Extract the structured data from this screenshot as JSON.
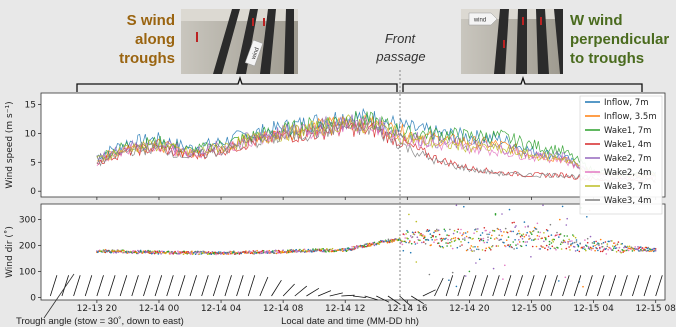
{
  "header": {
    "left_caption": [
      "S wind",
      "along",
      "troughs"
    ],
    "right_caption": [
      "W wind",
      "perpendicular",
      "to troughs"
    ],
    "front_label": [
      "Front",
      "passage"
    ],
    "photo_left_sign": "wind",
    "photo_right_sign": "wind"
  },
  "footer": {
    "trough_note": "Trough angle (stow = 30˚, down to east)",
    "xaxis_label": "Local date and time (MM-DD hh)"
  },
  "colors": {
    "Inflow, 7m": "#1f77b4",
    "Inflow, 3.5m": "#ff7f0e",
    "Wake1, 7m": "#2ca02c",
    "Wake1, 4m": "#d62728",
    "Wake2, 7m": "#9467bd",
    "Wake2, 4m": "#e377c2",
    "Wake3, 7m": "#bcbd22",
    "Wake3, 4m": "#7f7f7f",
    "header_green": "#4a6b1e",
    "header_brown": "#9a6410"
  },
  "chart_data": [
    {
      "type": "line",
      "ylabel": "Wind speed (m s⁻¹)",
      "ylim": [
        -1,
        17
      ],
      "yticks": [
        0,
        5,
        10,
        15
      ],
      "xlim": [
        -4,
        85
      ],
      "x_ticklabels": [
        "12-13 20",
        "12-14 00",
        "12-14 04",
        "12-14 08",
        "12-14 12",
        "12-14 16",
        "12-14 20",
        "12-15 00",
        "12-15 04",
        "12-15 08"
      ],
      "x_tick_positions_hours": [
        0,
        4,
        8,
        12,
        16,
        20,
        24,
        28,
        32,
        36
      ],
      "legend_position": "right",
      "front_passage_hour": 20,
      "x_units": "hours after 12-13 20:00",
      "series": [
        {
          "name": "Inflow, 7m",
          "x": [
            0,
            2,
            4,
            6,
            8,
            10,
            12,
            14,
            16,
            18,
            20,
            22,
            24,
            26,
            28,
            30,
            32,
            34,
            36
          ],
          "values": [
            6,
            8.5,
            9,
            7.5,
            8.5,
            10,
            11,
            12,
            13,
            12.5,
            11,
            10,
            9.5,
            9,
            7,
            6,
            3,
            3,
            3
          ]
        },
        {
          "name": "Inflow, 3.5m",
          "x": [
            0,
            2,
            4,
            6,
            8,
            10,
            12,
            14,
            16,
            18,
            20,
            22,
            24,
            26,
            28,
            30,
            32,
            34,
            36
          ],
          "values": [
            5.5,
            7.5,
            8,
            6.5,
            7.5,
            9,
            10,
            11,
            12,
            11.5,
            10,
            9,
            8.5,
            8,
            6.5,
            5.5,
            3,
            2.8,
            2.8
          ]
        },
        {
          "name": "Wake1, 7m",
          "x": [
            0,
            2,
            4,
            6,
            8,
            10,
            12,
            14,
            16,
            18,
            20,
            22,
            24,
            26,
            28,
            30,
            32,
            34,
            36
          ],
          "values": [
            5.8,
            8,
            8.5,
            7,
            8,
            9.5,
            10.5,
            11.5,
            12.5,
            12,
            10,
            10,
            9.5,
            9.5,
            8,
            7,
            3.5,
            3,
            3
          ]
        },
        {
          "name": "Wake1, 4m",
          "x": [
            0,
            2,
            4,
            6,
            8,
            10,
            12,
            14,
            16,
            18,
            20,
            22,
            24,
            26,
            28,
            30,
            32,
            34,
            36
          ],
          "values": [
            5,
            7,
            7.5,
            6,
            7,
            8.5,
            9.5,
            10,
            11,
            10.5,
            8,
            5.5,
            4,
            3.2,
            2.8,
            2.8,
            2,
            2,
            2
          ]
        },
        {
          "name": "Wake2, 7m",
          "x": [
            0,
            2,
            4,
            6,
            8,
            10,
            12,
            14,
            16,
            18,
            20,
            22,
            24,
            26,
            28,
            30,
            32,
            34,
            36
          ],
          "values": [
            5.5,
            7.8,
            8.2,
            6.8,
            7.8,
            9.2,
            10.2,
            11,
            12,
            11.5,
            9.5,
            8.5,
            8,
            7.5,
            6.5,
            6,
            3.2,
            2.8,
            2.8
          ]
        },
        {
          "name": "Wake2, 4m",
          "x": [
            0,
            2,
            4,
            6,
            8,
            10,
            12,
            14,
            16,
            18,
            20,
            22,
            24,
            26,
            28,
            30,
            32,
            34,
            36
          ],
          "values": [
            5,
            7.2,
            7.8,
            6.2,
            7.2,
            8.8,
            9.8,
            10.5,
            11.5,
            11,
            9,
            8,
            7.5,
            7,
            6,
            5.5,
            3,
            2.5,
            2.5
          ]
        },
        {
          "name": "Wake3, 7m",
          "x": [
            0,
            2,
            4,
            6,
            8,
            10,
            12,
            14,
            16,
            18,
            20,
            22,
            24,
            26,
            28,
            30,
            32,
            34,
            36
          ],
          "values": [
            5.4,
            7.6,
            8,
            6.6,
            7.6,
            9,
            10,
            10.8,
            11.8,
            11.2,
            9.2,
            8.2,
            7.8,
            7.2,
            6.2,
            5.8,
            3.1,
            2.7,
            2.7
          ]
        },
        {
          "name": "Wake3, 4m",
          "x": [
            0,
            2,
            4,
            6,
            8,
            10,
            12,
            14,
            16,
            18,
            20,
            22,
            24,
            26,
            28,
            30,
            32,
            34,
            36
          ],
          "values": [
            4.8,
            7,
            7.4,
            6,
            7,
            8.5,
            9.4,
            10.2,
            11.2,
            10.6,
            7.5,
            5,
            3.8,
            3,
            2.8,
            2.8,
            2.2,
            2,
            2
          ]
        }
      ]
    },
    {
      "type": "scatter",
      "ylabel": "Wind dir (˚)",
      "ylim": [
        -10,
        360
      ],
      "yticks": [
        0,
        100,
        200,
        300
      ],
      "xlim": [
        -4,
        85
      ],
      "x_ticklabels": [
        "12-13 20",
        "12-14 00",
        "12-14 04",
        "12-14 08",
        "12-14 12",
        "12-14 16",
        "12-14 20",
        "12-15 00",
        "12-15 04",
        "12-15 08"
      ],
      "x_units": "hours after 12-13 20:00",
      "series": [
        {
          "name": "Inflow, 7m",
          "x": [
            0,
            4,
            8,
            12,
            16,
            20,
            24,
            28,
            32,
            36
          ],
          "values": [
            180,
            175,
            172,
            178,
            185,
            235,
            245,
            250,
            205,
            185
          ]
        },
        {
          "name": "Wake1, 4m",
          "x": [
            0,
            4,
            8,
            12,
            16,
            20,
            24,
            28,
            32,
            36
          ],
          "values": [
            178,
            172,
            170,
            175,
            182,
            230,
            200,
            210,
            190,
            180
          ]
        }
      ],
      "trough_angles": {
        "name": "Trough angle (stow = 30˚, down to east)",
        "x": [
          0,
          2,
          4,
          6,
          8,
          10,
          12,
          14,
          16,
          18,
          20,
          22,
          24,
          26,
          28,
          30,
          32,
          34,
          36
        ],
        "values_deg": [
          30,
          30,
          30,
          30,
          30,
          30,
          60,
          75,
          90,
          105,
          120,
          30,
          30,
          30,
          30,
          30,
          30,
          30,
          30
        ]
      }
    }
  ]
}
